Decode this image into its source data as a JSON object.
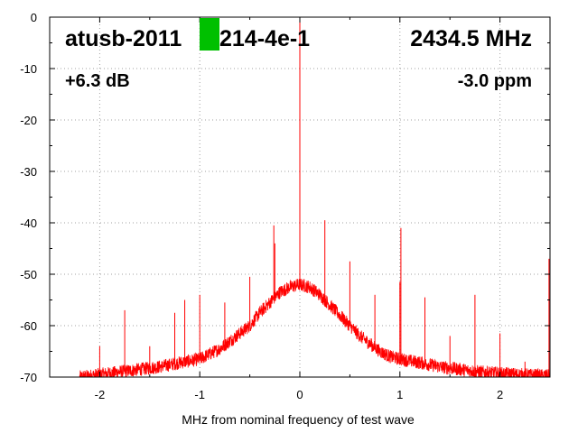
{
  "chart_data": {
    "type": "line",
    "annotations": {
      "device": "atusb-2011",
      "device_tail": "214-4e-1",
      "frequency": "2434.5 MHz",
      "gain": "+6.3 dB",
      "offset": "-3.0 ppm"
    },
    "xlabel": "MHz from nominal frequency of test wave",
    "ylabel": "",
    "xlim": [
      -2.5,
      2.5
    ],
    "ylim": [
      -70,
      0
    ],
    "x_ticks": [
      -2,
      -1,
      0,
      1,
      2
    ],
    "x_tick_labels": [
      "-2",
      "-1",
      "0",
      "1",
      "2"
    ],
    "y_ticks": [
      0,
      -10,
      -20,
      -30,
      -40,
      -50,
      -60,
      -70
    ],
    "y_tick_labels": [
      "0",
      "-10",
      "-20",
      "-30",
      "-40",
      "-50",
      "-60",
      "-70"
    ],
    "grid": true,
    "series": [
      {
        "color": "#ff0000",
        "noise_floor": [
          [
            -2.2,
            -70
          ],
          [
            -2.0,
            -69.5
          ],
          [
            -1.8,
            -69
          ],
          [
            -1.6,
            -68.5
          ],
          [
            -1.4,
            -68
          ],
          [
            -1.2,
            -67.2
          ],
          [
            -1.0,
            -66.5
          ],
          [
            -0.9,
            -65.5
          ],
          [
            -0.8,
            -64.5
          ],
          [
            -0.7,
            -63
          ],
          [
            -0.6,
            -61.5
          ],
          [
            -0.5,
            -60
          ],
          [
            -0.4,
            -57.5
          ],
          [
            -0.3,
            -55.5
          ],
          [
            -0.2,
            -53.5
          ],
          [
            -0.1,
            -52.5
          ],
          [
            0.0,
            -52
          ],
          [
            0.1,
            -52.5
          ],
          [
            0.2,
            -54
          ],
          [
            0.3,
            -56
          ],
          [
            0.4,
            -58
          ],
          [
            0.5,
            -60
          ],
          [
            0.6,
            -62
          ],
          [
            0.7,
            -63.5
          ],
          [
            0.8,
            -65
          ],
          [
            0.9,
            -66
          ],
          [
            1.0,
            -66.5
          ],
          [
            1.2,
            -67.2
          ],
          [
            1.4,
            -68
          ],
          [
            1.6,
            -68.5
          ],
          [
            1.8,
            -69
          ],
          [
            2.0,
            -69.3
          ],
          [
            2.2,
            -69.5
          ],
          [
            2.4,
            -69.7
          ],
          [
            2.5,
            -69.8
          ]
        ],
        "spurs": [
          [
            -2.0,
            -64
          ],
          [
            -1.75,
            -57
          ],
          [
            -1.5,
            -64
          ],
          [
            -1.25,
            -57.5
          ],
          [
            -1.15,
            -55
          ],
          [
            -1.0,
            -54
          ],
          [
            -0.75,
            -55.5
          ],
          [
            -0.5,
            -50.5
          ],
          [
            -0.26,
            -40.5
          ],
          [
            -0.25,
            -44
          ],
          [
            0.0,
            0
          ],
          [
            0.25,
            -39.5
          ],
          [
            0.5,
            -47.5
          ],
          [
            0.75,
            -54
          ],
          [
            1.0,
            -51.5
          ],
          [
            1.01,
            -41
          ],
          [
            1.25,
            -54.5
          ],
          [
            1.5,
            -62
          ],
          [
            1.75,
            -54
          ],
          [
            2.0,
            -61.5
          ],
          [
            2.25,
            -67
          ],
          [
            2.49,
            -47
          ]
        ]
      }
    ]
  }
}
